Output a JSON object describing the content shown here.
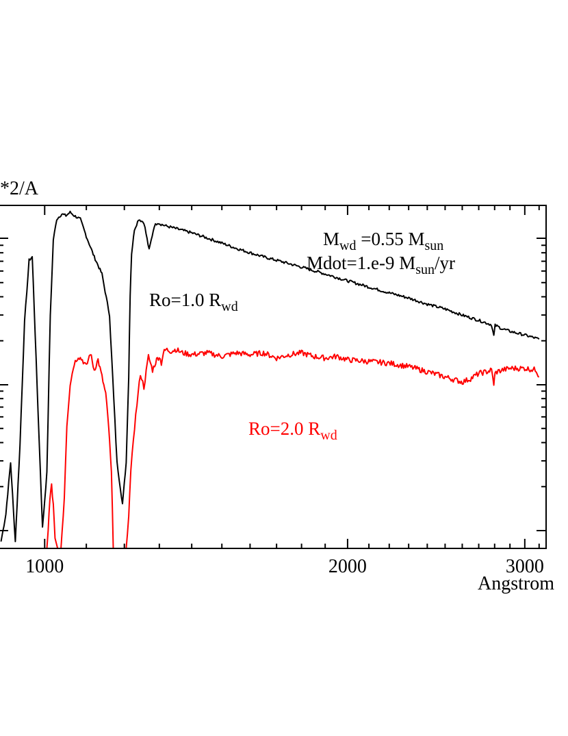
{
  "chart_data": {
    "type": "line",
    "title": "",
    "ylabel_fragment": "*2/A",
    "xlabel": "Angstrom",
    "xscale": "log",
    "xlim": [
      900,
      3150
    ],
    "ylim": [
      0,
      10
    ],
    "grid": false,
    "x_ticks": [
      {
        "value": 1000,
        "label": "1000"
      },
      {
        "value": 2000,
        "label": "2000"
      },
      {
        "value": 3000,
        "label": "3000"
      }
    ],
    "annotations": {
      "line1": {
        "m": "M",
        "wd": "wd",
        "eq": " =0.55 M",
        "sun": "sun"
      },
      "line2": {
        "pre": "Mdot=1.e-9 M",
        "sun": "sun",
        "post": "/yr"
      }
    },
    "series": [
      {
        "name": "Ro=1.0 Rwd",
        "label_main": "Ro=1.0 R",
        "label_sub": "wd",
        "color": "#000000",
        "x": [
          905,
          915,
          925,
          935,
          945,
          955,
          965,
          972,
          985,
          995,
          1005,
          1013,
          1020,
          1028,
          1040,
          1050,
          1060,
          1070,
          1085,
          1100,
          1120,
          1140,
          1160,
          1180,
          1195,
          1205,
          1212,
          1216,
          1220,
          1228,
          1240,
          1255,
          1270,
          1285,
          1295,
          1305,
          1320,
          1340,
          1400,
          1450,
          1500,
          1550,
          1600,
          1650,
          1700,
          1750,
          1800,
          1850,
          1900,
          1950,
          2000,
          2100,
          2200,
          2300,
          2400,
          2500,
          2600,
          2700,
          2780,
          2795,
          2803,
          2815,
          2850,
          2900,
          3000,
          3100
        ],
        "y": [
          0.2,
          1.0,
          2.5,
          0.2,
          3.0,
          6.6,
          8.4,
          8.5,
          4.0,
          0.6,
          2.2,
          6.8,
          9.0,
          9.6,
          9.75,
          9.7,
          9.8,
          9.7,
          9.6,
          9.1,
          8.5,
          8.0,
          6.8,
          2.5,
          1.3,
          2.5,
          5.0,
          7.4,
          8.6,
          9.3,
          9.6,
          9.5,
          8.7,
          9.4,
          9.5,
          9.45,
          9.4,
          9.35,
          9.2,
          9.05,
          8.9,
          8.75,
          8.62,
          8.5,
          8.4,
          8.3,
          8.2,
          8.1,
          8.0,
          7.9,
          7.8,
          7.62,
          7.45,
          7.3,
          7.12,
          6.98,
          6.8,
          6.65,
          6.52,
          6.2,
          6.5,
          6.48,
          6.4,
          6.33,
          6.22,
          6.1
        ]
      },
      {
        "name": "Ro=2.0 Rwd",
        "label_main": "Ro=2.0 R",
        "label_sub": "wd",
        "color": "#ff0000",
        "x": [
          1005,
          1008,
          1012,
          1016,
          1020,
          1024,
          1030,
          1038,
          1046,
          1052,
          1060,
          1070,
          1080,
          1090,
          1100,
          1110,
          1120,
          1130,
          1140,
          1150,
          1158,
          1165,
          1170,
          1180,
          1190,
          1198,
          1205,
          1212,
          1218,
          1225,
          1235,
          1245,
          1255,
          1268,
          1280,
          1292,
          1300,
          1306,
          1312,
          1320,
          1335,
          1350,
          1370,
          1400,
          1450,
          1500,
          1550,
          1600,
          1650,
          1700,
          1750,
          1800,
          1850,
          1900,
          1950,
          2000,
          2100,
          2200,
          2300,
          2400,
          2500,
          2600,
          2650,
          2700,
          2750,
          2780,
          2795,
          2803,
          2815,
          2850,
          2900,
          3000,
          3080,
          3100
        ],
        "y": [
          0.0,
          0.5,
          1.5,
          1.8,
          1.3,
          0.3,
          0.0,
          0.0,
          1.5,
          3.6,
          4.8,
          5.4,
          5.6,
          5.5,
          5.3,
          5.7,
          5.2,
          5.5,
          5.0,
          4.5,
          3.5,
          2.2,
          0.0,
          0.0,
          0.0,
          0.0,
          0.0,
          1.0,
          2.2,
          3.2,
          4.2,
          5.1,
          4.7,
          5.6,
          5.2,
          5.5,
          5.6,
          5.4,
          5.7,
          5.8,
          5.75,
          5.8,
          5.7,
          5.65,
          5.7,
          5.6,
          5.7,
          5.65,
          5.7,
          5.55,
          5.65,
          5.7,
          5.6,
          5.55,
          5.6,
          5.5,
          5.45,
          5.4,
          5.3,
          5.15,
          5.0,
          4.85,
          4.95,
          5.1,
          5.15,
          5.2,
          4.8,
          5.1,
          5.15,
          5.2,
          5.25,
          5.25,
          5.2,
          5.0
        ]
      }
    ]
  },
  "colors": {
    "axis": "#000000",
    "background": "#ffffff"
  }
}
